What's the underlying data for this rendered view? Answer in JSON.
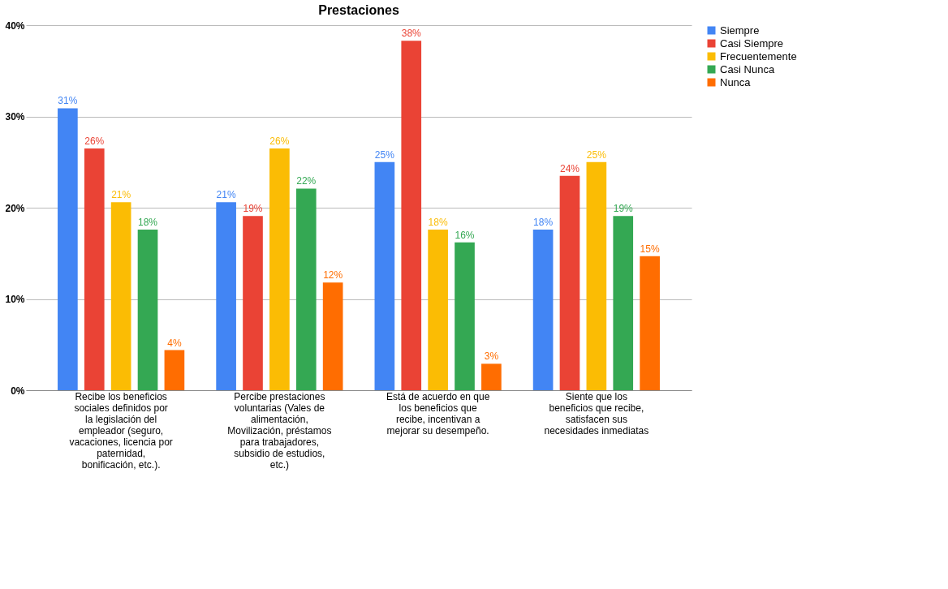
{
  "chart_data": {
    "type": "bar",
    "title": "Prestaciones",
    "categories": [
      "Recibe los beneficios sociales definidos por la legislación del empleador (seguro, vacaciones, licencia por paternidad, bonificación, etc.).",
      "Percibe prestaciones voluntarias (Vales de alimentación, Movilización, préstamos para trabajadores, subsidio de estudios, etc.)",
      "Está de acuerdo en que los beneficios que recibe, incentivan a mejorar su desempeño.",
      "Siente que los beneficios que recibe, satisfacen sus necesidades inmediatas"
    ],
    "series": [
      {
        "name": "Siempre",
        "color": "#4285f4",
        "values": [
          30.9,
          20.6,
          25.0,
          17.6
        ],
        "value_labels": [
          "31%",
          "21%",
          "25%",
          "18%"
        ]
      },
      {
        "name": "Casi Siempre",
        "color": "#ea4335",
        "values": [
          26.5,
          19.1,
          38.3,
          23.5
        ],
        "value_labels": [
          "26%",
          "19%",
          "38%",
          "24%"
        ]
      },
      {
        "name": "Frecuentemente",
        "color": "#fbbc04",
        "values": [
          20.6,
          26.5,
          17.6,
          25.0
        ],
        "value_labels": [
          "21%",
          "26%",
          "18%",
          "25%"
        ]
      },
      {
        "name": "Casi Nunca",
        "color": "#34a853",
        "values": [
          17.6,
          22.1,
          16.2,
          19.1
        ],
        "value_labels": [
          "18%",
          "22%",
          "16%",
          "19%"
        ]
      },
      {
        "name": "Nunca",
        "color": "#ff6d01",
        "values": [
          4.4,
          11.8,
          2.9,
          14.7
        ],
        "value_labels": [
          "4%",
          "12%",
          "3%",
          "15%"
        ]
      }
    ],
    "ylim": [
      0,
      40
    ],
    "yticks": [
      {
        "value": 0,
        "label": "0%"
      },
      {
        "value": 10,
        "label": "10%"
      },
      {
        "value": 20,
        "label": "20%"
      },
      {
        "value": 30,
        "label": "30%"
      },
      {
        "value": 40,
        "label": "40%"
      }
    ],
    "grid": "y",
    "legend": "right"
  }
}
